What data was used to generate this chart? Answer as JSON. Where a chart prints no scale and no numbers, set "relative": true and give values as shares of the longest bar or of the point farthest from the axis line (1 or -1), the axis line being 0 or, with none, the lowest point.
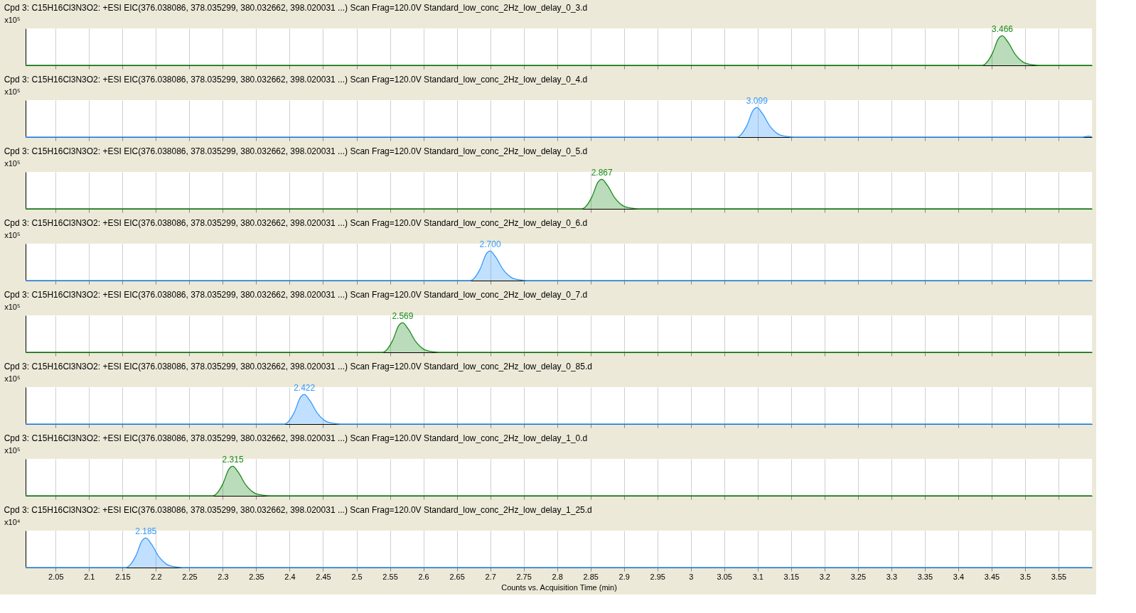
{
  "chart_data": [
    {
      "type": "area",
      "relative": true,
      "title": "Cpd 3: C15H16Cl3N3O2: +ESI EIC(376.038086, 378.035299, 380.032662, 398.020031 ...) Scan Frag=120.0V Standard_low_conc_2Hz_low_delay_0_3.d",
      "ylabel": "x10⁵",
      "x": [
        2.005,
        3.436,
        3.451,
        3.46,
        3.466,
        3.474,
        3.486,
        3.498,
        3.511,
        3.521,
        3.6
      ],
      "series": [
        {
          "color": "#1a8a1a",
          "values": [
            0,
            0,
            0.4,
            0.9,
            1,
            0.8,
            0.35,
            0.1,
            0.02,
            0,
            0
          ]
        }
      ],
      "annotations": [
        {
          "text": "3.466",
          "x": 3.466,
          "y": 1
        }
      ],
      "xlim": [
        2.005,
        3.6
      ],
      "xticks": [
        2.05,
        2.1,
        2.15,
        2.2,
        2.25,
        2.3,
        2.35,
        2.4,
        2.45,
        2.5,
        2.55,
        2.6,
        2.65,
        2.7,
        2.75,
        2.8,
        2.85,
        2.9,
        2.95,
        3,
        3.05,
        3.1,
        3.15,
        3.2,
        3.25,
        3.3,
        3.35,
        3.4,
        3.45,
        3.5,
        3.55
      ],
      "grid": "x",
      "tick_labels": false
    },
    {
      "type": "area",
      "relative": true,
      "title": "Cpd 3: C15H16Cl3N3O2: +ESI EIC(376.038086, 378.035299, 380.032662, 398.020031 ...) Scan Frag=120.0V Standard_low_conc_2Hz_low_delay_0_4.d",
      "ylabel": "x10⁵",
      "x": [
        2.005,
        3.069,
        3.084,
        3.093,
        3.099,
        3.107,
        3.119,
        3.131,
        3.144,
        3.154,
        3.585,
        3.595,
        3.6
      ],
      "series": [
        {
          "color": "#3399ff",
          "values": [
            0,
            0,
            0.4,
            0.9,
            1,
            0.8,
            0.35,
            0.1,
            0.02,
            0,
            0,
            0.03,
            0.01
          ]
        }
      ],
      "annotations": [
        {
          "text": "3.099",
          "x": 3.099,
          "y": 1
        }
      ],
      "xlim": [
        2.005,
        3.6
      ],
      "xticks": [
        2.05,
        2.1,
        2.15,
        2.2,
        2.25,
        2.3,
        2.35,
        2.4,
        2.45,
        2.5,
        2.55,
        2.6,
        2.65,
        2.7,
        2.75,
        2.8,
        2.85,
        2.9,
        2.95,
        3,
        3.05,
        3.1,
        3.15,
        3.2,
        3.25,
        3.3,
        3.35,
        3.4,
        3.45,
        3.5,
        3.55
      ],
      "grid": "x",
      "tick_labels": false
    },
    {
      "type": "area",
      "relative": true,
      "title": "Cpd 3: C15H16Cl3N3O2: +ESI EIC(376.038086, 378.035299, 380.032662, 398.020031 ...) Scan Frag=120.0V Standard_low_conc_2Hz_low_delay_0_5.d",
      "ylabel": "x10⁵",
      "x": [
        2.005,
        2.837,
        2.852,
        2.861,
        2.867,
        2.875,
        2.887,
        2.899,
        2.912,
        2.922,
        3.6
      ],
      "series": [
        {
          "color": "#1a8a1a",
          "values": [
            0,
            0,
            0.4,
            0.9,
            1,
            0.8,
            0.35,
            0.1,
            0.02,
            0,
            0
          ]
        }
      ],
      "annotations": [
        {
          "text": "2.867",
          "x": 2.867,
          "y": 1
        }
      ],
      "xlim": [
        2.005,
        3.6
      ],
      "xticks": [
        2.05,
        2.1,
        2.15,
        2.2,
        2.25,
        2.3,
        2.35,
        2.4,
        2.45,
        2.5,
        2.55,
        2.6,
        2.65,
        2.7,
        2.75,
        2.8,
        2.85,
        2.9,
        2.95,
        3,
        3.05,
        3.1,
        3.15,
        3.2,
        3.25,
        3.3,
        3.35,
        3.4,
        3.45,
        3.5,
        3.55
      ],
      "grid": "x",
      "tick_labels": false
    },
    {
      "type": "area",
      "relative": true,
      "title": "Cpd 3: C15H16Cl3N3O2: +ESI EIC(376.038086, 378.035299, 380.032662, 398.020031 ...) Scan Frag=120.0V Standard_low_conc_2Hz_low_delay_0_6.d",
      "ylabel": "x10⁵",
      "x": [
        2.005,
        2.67,
        2.685,
        2.694,
        2.7,
        2.708,
        2.72,
        2.732,
        2.745,
        2.755,
        3.6
      ],
      "series": [
        {
          "color": "#3399ff",
          "values": [
            0,
            0,
            0.4,
            0.9,
            1,
            0.8,
            0.35,
            0.1,
            0.02,
            0,
            0
          ]
        }
      ],
      "annotations": [
        {
          "text": "2.700",
          "x": 2.7,
          "y": 1
        }
      ],
      "xlim": [
        2.005,
        3.6
      ],
      "xticks": [
        2.05,
        2.1,
        2.15,
        2.2,
        2.25,
        2.3,
        2.35,
        2.4,
        2.45,
        2.5,
        2.55,
        2.6,
        2.65,
        2.7,
        2.75,
        2.8,
        2.85,
        2.9,
        2.95,
        3,
        3.05,
        3.1,
        3.15,
        3.2,
        3.25,
        3.3,
        3.35,
        3.4,
        3.45,
        3.5,
        3.55
      ],
      "grid": "x",
      "tick_labels": false
    },
    {
      "type": "area",
      "relative": true,
      "title": "Cpd 3: C15H16Cl3N3O2: +ESI EIC(376.038086, 378.035299, 380.032662, 398.020031 ...) Scan Frag=120.0V Standard_low_conc_2Hz_low_delay_0_7.d",
      "ylabel": "x10⁵",
      "x": [
        2.005,
        2.539,
        2.554,
        2.563,
        2.569,
        2.577,
        2.589,
        2.601,
        2.614,
        2.624,
        3.6
      ],
      "series": [
        {
          "color": "#1a8a1a",
          "values": [
            0,
            0,
            0.4,
            0.9,
            1,
            0.8,
            0.35,
            0.1,
            0.02,
            0,
            0
          ]
        }
      ],
      "annotations": [
        {
          "text": "2.569",
          "x": 2.569,
          "y": 1
        }
      ],
      "xlim": [
        2.005,
        3.6
      ],
      "xticks": [
        2.05,
        2.1,
        2.15,
        2.2,
        2.25,
        2.3,
        2.35,
        2.4,
        2.45,
        2.5,
        2.55,
        2.6,
        2.65,
        2.7,
        2.75,
        2.8,
        2.85,
        2.9,
        2.95,
        3,
        3.05,
        3.1,
        3.15,
        3.2,
        3.25,
        3.3,
        3.35,
        3.4,
        3.45,
        3.5,
        3.55
      ],
      "grid": "x",
      "tick_labels": false
    },
    {
      "type": "area",
      "relative": true,
      "title": "Cpd 3: C15H16Cl3N3O2: +ESI EIC(376.038086, 378.035299, 380.032662, 398.020031 ...) Scan Frag=120.0V Standard_low_conc_2Hz_low_delay_0_85.d",
      "ylabel": "x10⁵",
      "x": [
        2.005,
        2.392,
        2.407,
        2.416,
        2.422,
        2.43,
        2.442,
        2.454,
        2.467,
        2.477,
        3.6
      ],
      "series": [
        {
          "color": "#3399ff",
          "values": [
            0,
            0,
            0.4,
            0.9,
            1,
            0.8,
            0.35,
            0.1,
            0.02,
            0,
            0
          ]
        }
      ],
      "annotations": [
        {
          "text": "2.422",
          "x": 2.422,
          "y": 1
        }
      ],
      "xlim": [
        2.005,
        3.6
      ],
      "xticks": [
        2.05,
        2.1,
        2.15,
        2.2,
        2.25,
        2.3,
        2.35,
        2.4,
        2.45,
        2.5,
        2.55,
        2.6,
        2.65,
        2.7,
        2.75,
        2.8,
        2.85,
        2.9,
        2.95,
        3,
        3.05,
        3.1,
        3.15,
        3.2,
        3.25,
        3.3,
        3.35,
        3.4,
        3.45,
        3.5,
        3.55
      ],
      "grid": "x",
      "tick_labels": false
    },
    {
      "type": "area",
      "relative": true,
      "title": "Cpd 3: C15H16Cl3N3O2: +ESI EIC(376.038086, 378.035299, 380.032662, 398.020031 ...) Scan Frag=120.0V Standard_low_conc_2Hz_low_delay_1_0.d",
      "ylabel": "x10⁵",
      "x": [
        2.005,
        2.285,
        2.3,
        2.309,
        2.315,
        2.323,
        2.335,
        2.347,
        2.36,
        2.37,
        3.6
      ],
      "series": [
        {
          "color": "#1a8a1a",
          "values": [
            0,
            0,
            0.4,
            0.9,
            1,
            0.8,
            0.35,
            0.1,
            0.02,
            0,
            0
          ]
        }
      ],
      "annotations": [
        {
          "text": "2.315",
          "x": 2.315,
          "y": 1
        }
      ],
      "xlim": [
        2.005,
        3.6
      ],
      "xticks": [
        2.05,
        2.1,
        2.15,
        2.2,
        2.25,
        2.3,
        2.35,
        2.4,
        2.45,
        2.5,
        2.55,
        2.6,
        2.65,
        2.7,
        2.75,
        2.8,
        2.85,
        2.9,
        2.95,
        3,
        3.05,
        3.1,
        3.15,
        3.2,
        3.25,
        3.3,
        3.35,
        3.4,
        3.45,
        3.5,
        3.55
      ],
      "grid": "x",
      "tick_labels": false
    },
    {
      "type": "area",
      "relative": true,
      "title": "Cpd 3: C15H16Cl3N3O2: +ESI EIC(376.038086, 378.035299, 380.032662, 398.020031 ...) Scan Frag=120.0V Standard_low_conc_2Hz_low_delay_1_25.d",
      "ylabel": "x10⁴",
      "xlabel": "Counts vs. Acquisition Time (min)",
      "x": [
        2.005,
        2.155,
        2.17,
        2.179,
        2.185,
        2.193,
        2.205,
        2.217,
        2.23,
        2.24,
        3.6
      ],
      "series": [
        {
          "color": "#3399ff",
          "values": [
            0,
            0,
            0.4,
            0.9,
            1,
            0.8,
            0.35,
            0.1,
            0.02,
            0,
            0
          ]
        }
      ],
      "annotations": [
        {
          "text": "2.185",
          "x": 2.185,
          "y": 1
        }
      ],
      "xlim": [
        2.005,
        3.6
      ],
      "xticks": [
        2.05,
        2.1,
        2.15,
        2.2,
        2.25,
        2.3,
        2.35,
        2.4,
        2.45,
        2.5,
        2.55,
        2.6,
        2.65,
        2.7,
        2.75,
        2.8,
        2.85,
        2.9,
        2.95,
        3,
        3.05,
        3.1,
        3.15,
        3.2,
        3.25,
        3.3,
        3.35,
        3.4,
        3.45,
        3.5,
        3.55
      ],
      "grid": "x",
      "tick_labels": "x"
    }
  ]
}
